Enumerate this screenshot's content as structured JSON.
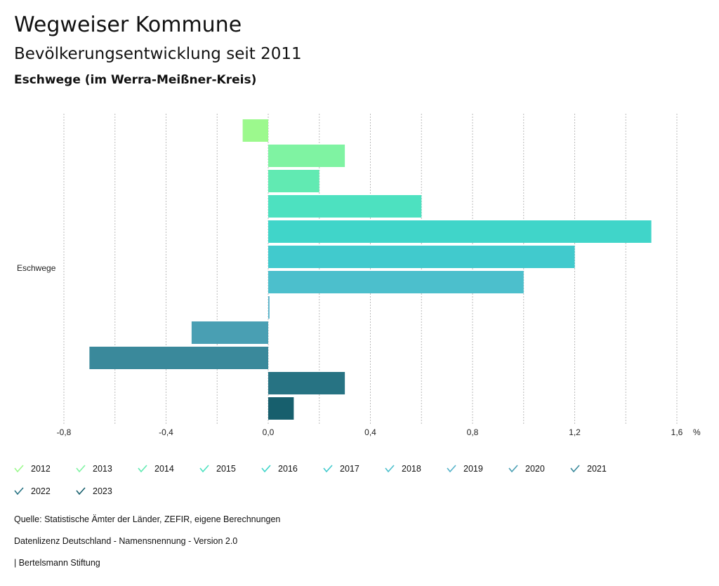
{
  "header": {
    "title": "Wegweiser Kommune",
    "subtitle": "Bevölkerungsentwicklung seit 2011",
    "region": "Eschwege (im Werra-Meißner-Kreis)"
  },
  "chart_data": {
    "type": "bar",
    "orientation": "horizontal",
    "categories": [
      "Eschwege"
    ],
    "series": [
      {
        "name": "2012",
        "values": [
          -0.1
        ],
        "color": "#9cf98d"
      },
      {
        "name": "2013",
        "values": [
          0.3
        ],
        "color": "#7ff3a2"
      },
      {
        "name": "2014",
        "values": [
          0.2
        ],
        "color": "#61eab2"
      },
      {
        "name": "2015",
        "values": [
          0.6
        ],
        "color": "#4de1c0"
      },
      {
        "name": "2016",
        "values": [
          1.5
        ],
        "color": "#40d5c9"
      },
      {
        "name": "2017",
        "values": [
          1.2
        ],
        "color": "#41cacd"
      },
      {
        "name": "2018",
        "values": [
          1.0
        ],
        "color": "#4cbfcc"
      },
      {
        "name": "2019",
        "values": [
          0.005
        ],
        "color": "#55b2c9"
      },
      {
        "name": "2020",
        "values": [
          -0.3
        ],
        "color": "#499fb3"
      },
      {
        "name": "2021",
        "values": [
          -0.7
        ],
        "color": "#3a899b"
      },
      {
        "name": "2022",
        "values": [
          0.3
        ],
        "color": "#277383"
      },
      {
        "name": "2023",
        "values": [
          0.1
        ],
        "color": "#175f6d"
      }
    ],
    "xlim": [
      -0.8,
      1.6
    ],
    "xticks": [
      "-0,8",
      "-0,4",
      "0,0",
      "0,4",
      "0,8",
      "1,2",
      "1,6"
    ],
    "xunit": "%",
    "grid": true,
    "legend": "bottom"
  },
  "footer": {
    "source": "Quelle: Statistische Ämter der Länder, ZEFIR, eigene Berechnungen",
    "license": "Datenlizenz Deutschland - Namensnennung - Version 2.0",
    "brand": "| Bertelsmann Stiftung"
  }
}
